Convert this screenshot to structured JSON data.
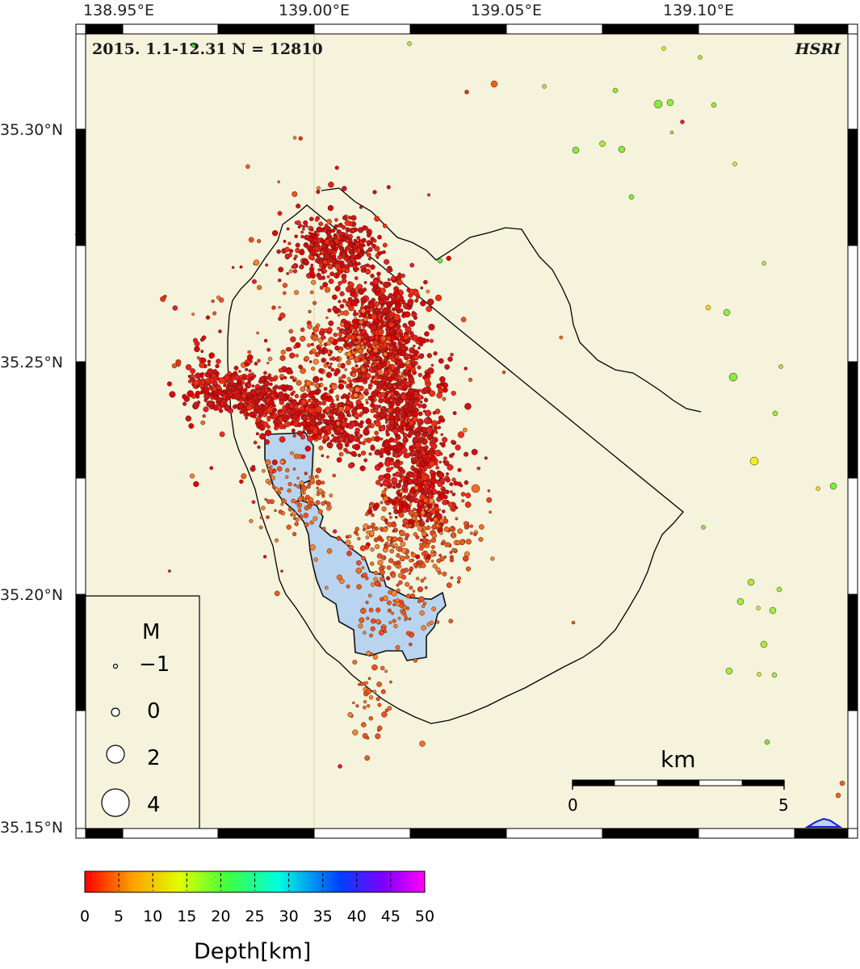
{
  "map": {
    "caption": "2015. 1.1-12.31 N = 12810",
    "credit": "HSRI",
    "lon_labels": [
      "138.95°E",
      "139.00°E",
      "139.05°E",
      "139.10°E"
    ],
    "lat_labels": [
      "35.30°N",
      "35.25°N",
      "35.20°N",
      "35.15°N"
    ],
    "lon_range": [
      138.9,
      139.125
    ],
    "lat_range": [
      35.15,
      35.32
    ],
    "background_color": "#f5f3dc",
    "shaded_area_color": "#b8d4ee",
    "boundary_color": "#000000"
  },
  "legend": {
    "title": "M",
    "items": [
      {
        "magnitude": -1,
        "label": "−1"
      },
      {
        "magnitude": 0,
        "label": "0"
      },
      {
        "magnitude": 2,
        "label": "2"
      },
      {
        "magnitude": 4,
        "label": "4"
      }
    ]
  },
  "scalebar": {
    "title": "km",
    "start_label": "0",
    "end_label": "5",
    "length_km": 5
  },
  "colorbar": {
    "title": "Depth[km]",
    "tick_labels": [
      "0",
      "5",
      "10",
      "15",
      "20",
      "25",
      "30",
      "35",
      "40",
      "45",
      "50"
    ],
    "range_km": [
      0,
      50
    ],
    "colors": [
      "#ff0000",
      "#ffa000",
      "#e0ff00",
      "#40ff40",
      "#00ffe0",
      "#0040ff",
      "#8000ff",
      "#ff00ff"
    ]
  }
}
